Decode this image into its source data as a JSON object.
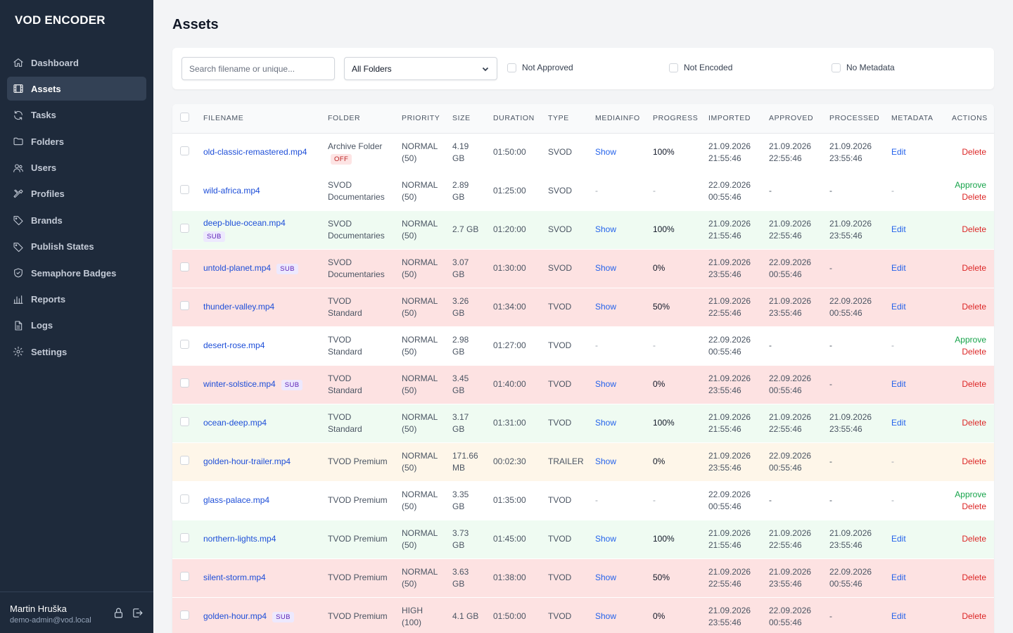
{
  "app": {
    "title": "VOD ENCODER"
  },
  "sidebar": {
    "items": [
      {
        "label": "Dashboard",
        "icon": "home-icon",
        "active": false
      },
      {
        "label": "Assets",
        "icon": "film-icon",
        "active": true
      },
      {
        "label": "Tasks",
        "icon": "refresh-icon",
        "active": false
      },
      {
        "label": "Folders",
        "icon": "folder-icon",
        "active": false
      },
      {
        "label": "Users",
        "icon": "users-icon",
        "active": false
      },
      {
        "label": "Profiles",
        "icon": "tools-icon",
        "active": false
      },
      {
        "label": "Brands",
        "icon": "tag-icon",
        "active": false
      },
      {
        "label": "Publish States",
        "icon": "tag-icon",
        "active": false
      },
      {
        "label": "Semaphore Badges",
        "icon": "shield-icon",
        "active": false
      },
      {
        "label": "Reports",
        "icon": "bar-chart-icon",
        "active": false
      },
      {
        "label": "Logs",
        "icon": "document-icon",
        "active": false
      },
      {
        "label": "Settings",
        "icon": "gear-icon",
        "active": false
      }
    ]
  },
  "user": {
    "name": "Martin Hruška",
    "email": "demo-admin@vod.local"
  },
  "page": {
    "title": "Assets"
  },
  "filters": {
    "search_placeholder": "Search filename or unique...",
    "search_value": "",
    "folder_selected": "All Folders",
    "checks": [
      {
        "label": "Not Approved",
        "checked": false
      },
      {
        "label": "Not Encoded",
        "checked": false
      },
      {
        "label": "No Metadata",
        "checked": false
      }
    ]
  },
  "table": {
    "columns": [
      "FILENAME",
      "FOLDER",
      "PRIORITY",
      "SIZE",
      "DURATION",
      "TYPE",
      "MEDIAINFO",
      "PROGRESS",
      "IMPORTED",
      "APPROVED",
      "PROCESSED",
      "METADATA",
      "ACTIONS"
    ],
    "action_labels": {
      "approve": "Approve",
      "delete": "Delete",
      "edit": "Edit",
      "show": "Show"
    },
    "rows": [
      {
        "status": "white",
        "filename": "old-classic-remastered.mp4",
        "badge": "",
        "folder": [
          "Archive Folder"
        ],
        "folder_badge": "OFF",
        "priority": [
          "NORMAL",
          "(50)"
        ],
        "size": [
          "4.19",
          "GB"
        ],
        "duration": "01:50:00",
        "type": "SVOD",
        "mediainfo": "Show",
        "progress": "100%",
        "imported": [
          "21.09.2026",
          "21:55:46"
        ],
        "approved": [
          "21.09.2026",
          "22:55:46"
        ],
        "processed": [
          "21.09.2026",
          "23:55:46"
        ],
        "metadata": "Edit",
        "approve": false
      },
      {
        "status": "white",
        "filename": "wild-africa.mp4",
        "badge": "",
        "folder": [
          "SVOD",
          "Documentaries"
        ],
        "folder_badge": "",
        "priority": [
          "NORMAL",
          "(50)"
        ],
        "size": [
          "2.89",
          "GB"
        ],
        "duration": "01:25:00",
        "type": "SVOD",
        "mediainfo": "-",
        "progress": "-",
        "imported": [
          "22.09.2026",
          "00:55:46"
        ],
        "approved": [
          "-"
        ],
        "processed": [
          "-"
        ],
        "metadata": "-",
        "approve": true
      },
      {
        "status": "green",
        "filename": "deep-blue-ocean.mp4",
        "badge": "SUB",
        "badge_block": true,
        "folder": [
          "SVOD",
          "Documentaries"
        ],
        "folder_badge": "",
        "priority": [
          "NORMAL",
          "(50)"
        ],
        "size": [
          "2.7 GB"
        ],
        "duration": "01:20:00",
        "type": "SVOD",
        "mediainfo": "Show",
        "progress": "100%",
        "imported": [
          "21.09.2026",
          "21:55:46"
        ],
        "approved": [
          "21.09.2026",
          "22:55:46"
        ],
        "processed": [
          "21.09.2026",
          "23:55:46"
        ],
        "metadata": "Edit",
        "approve": false
      },
      {
        "status": "red",
        "filename": "untold-planet.mp4",
        "badge": "SUB",
        "folder": [
          "SVOD",
          "Documentaries"
        ],
        "folder_badge": "",
        "priority": [
          "NORMAL",
          "(50)"
        ],
        "size": [
          "3.07",
          "GB"
        ],
        "duration": "01:30:00",
        "type": "SVOD",
        "mediainfo": "Show",
        "progress": "0%",
        "imported": [
          "21.09.2026",
          "23:55:46"
        ],
        "approved": [
          "22.09.2026",
          "00:55:46"
        ],
        "processed": [
          "-"
        ],
        "metadata": "Edit",
        "approve": false
      },
      {
        "status": "red",
        "filename": "thunder-valley.mp4",
        "badge": "",
        "folder": [
          "TVOD",
          "Standard"
        ],
        "folder_badge": "",
        "priority": [
          "NORMAL",
          "(50)"
        ],
        "size": [
          "3.26",
          "GB"
        ],
        "duration": "01:34:00",
        "type": "TVOD",
        "mediainfo": "Show",
        "progress": "50%",
        "imported": [
          "21.09.2026",
          "22:55:46"
        ],
        "approved": [
          "21.09.2026",
          "23:55:46"
        ],
        "processed": [
          "22.09.2026",
          "00:55:46"
        ],
        "metadata": "Edit",
        "approve": false
      },
      {
        "status": "white",
        "filename": "desert-rose.mp4",
        "badge": "",
        "folder": [
          "TVOD",
          "Standard"
        ],
        "folder_badge": "",
        "priority": [
          "NORMAL",
          "(50)"
        ],
        "size": [
          "2.98",
          "GB"
        ],
        "duration": "01:27:00",
        "type": "TVOD",
        "mediainfo": "-",
        "progress": "-",
        "imported": [
          "22.09.2026",
          "00:55:46"
        ],
        "approved": [
          "-"
        ],
        "processed": [
          "-"
        ],
        "metadata": "-",
        "approve": true
      },
      {
        "status": "red",
        "filename": "winter-solstice.mp4",
        "badge": "SUB",
        "folder": [
          "TVOD",
          "Standard"
        ],
        "folder_badge": "",
        "priority": [
          "NORMAL",
          "(50)"
        ],
        "size": [
          "3.45",
          "GB"
        ],
        "duration": "01:40:00",
        "type": "TVOD",
        "mediainfo": "Show",
        "progress": "0%",
        "imported": [
          "21.09.2026",
          "23:55:46"
        ],
        "approved": [
          "22.09.2026",
          "00:55:46"
        ],
        "processed": [
          "-"
        ],
        "metadata": "Edit",
        "approve": false
      },
      {
        "status": "green",
        "filename": "ocean-deep.mp4",
        "badge": "",
        "folder": [
          "TVOD",
          "Standard"
        ],
        "folder_badge": "",
        "priority": [
          "NORMAL",
          "(50)"
        ],
        "size": [
          "3.17",
          "GB"
        ],
        "duration": "01:31:00",
        "type": "TVOD",
        "mediainfo": "Show",
        "progress": "100%",
        "imported": [
          "21.09.2026",
          "21:55:46"
        ],
        "approved": [
          "21.09.2026",
          "22:55:46"
        ],
        "processed": [
          "21.09.2026",
          "23:55:46"
        ],
        "metadata": "Edit",
        "approve": false
      },
      {
        "status": "yellow",
        "filename": "golden-hour-trailer.mp4",
        "badge": "",
        "folder": [
          "TVOD Premium"
        ],
        "folder_badge": "",
        "priority": [
          "NORMAL",
          "(50)"
        ],
        "size": [
          "171.66",
          "MB"
        ],
        "duration": "00:02:30",
        "type": "TRAILER",
        "mediainfo": "Show",
        "progress": "0%",
        "imported": [
          "21.09.2026",
          "23:55:46"
        ],
        "approved": [
          "22.09.2026",
          "00:55:46"
        ],
        "processed": [
          "-"
        ],
        "metadata": "-",
        "approve": false
      },
      {
        "status": "white",
        "filename": "glass-palace.mp4",
        "badge": "",
        "folder": [
          "TVOD Premium"
        ],
        "folder_badge": "",
        "priority": [
          "NORMAL",
          "(50)"
        ],
        "size": [
          "3.35",
          "GB"
        ],
        "duration": "01:35:00",
        "type": "TVOD",
        "mediainfo": "-",
        "progress": "-",
        "imported": [
          "22.09.2026",
          "00:55:46"
        ],
        "approved": [
          "-"
        ],
        "processed": [
          "-"
        ],
        "metadata": "-",
        "approve": true
      },
      {
        "status": "green",
        "filename": "northern-lights.mp4",
        "badge": "",
        "folder": [
          "TVOD Premium"
        ],
        "folder_badge": "",
        "priority": [
          "NORMAL",
          "(50)"
        ],
        "size": [
          "3.73",
          "GB"
        ],
        "duration": "01:45:00",
        "type": "TVOD",
        "mediainfo": "Show",
        "progress": "100%",
        "imported": [
          "21.09.2026",
          "21:55:46"
        ],
        "approved": [
          "21.09.2026",
          "22:55:46"
        ],
        "processed": [
          "21.09.2026",
          "23:55:46"
        ],
        "metadata": "Edit",
        "approve": false
      },
      {
        "status": "red",
        "filename": "silent-storm.mp4",
        "badge": "",
        "folder": [
          "TVOD Premium"
        ],
        "folder_badge": "",
        "priority": [
          "NORMAL",
          "(50)"
        ],
        "size": [
          "3.63",
          "GB"
        ],
        "duration": "01:38:00",
        "type": "TVOD",
        "mediainfo": "Show",
        "progress": "50%",
        "imported": [
          "21.09.2026",
          "22:55:46"
        ],
        "approved": [
          "21.09.2026",
          "23:55:46"
        ],
        "processed": [
          "22.09.2026",
          "00:55:46"
        ],
        "metadata": "Edit",
        "approve": false
      },
      {
        "status": "red",
        "filename": "golden-hour.mp4",
        "badge": "SUB",
        "folder": [
          "TVOD Premium"
        ],
        "folder_badge": "",
        "priority": [
          "HIGH",
          "(100)"
        ],
        "size": [
          "4.1 GB"
        ],
        "duration": "01:50:00",
        "type": "TVOD",
        "mediainfo": "Show",
        "progress": "0%",
        "imported": [
          "21.09.2026",
          "23:55:46"
        ],
        "approved": [
          "22.09.2026",
          "00:55:46"
        ],
        "processed": [
          "-"
        ],
        "metadata": "Edit",
        "approve": false
      }
    ]
  }
}
